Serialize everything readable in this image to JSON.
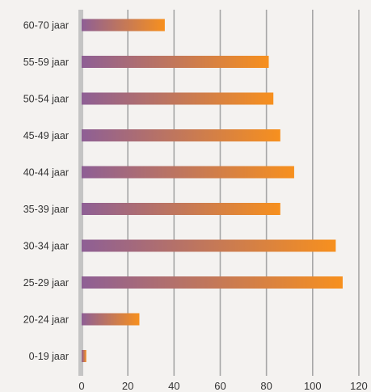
{
  "chart_data": {
    "type": "bar",
    "orientation": "horizontal",
    "categories": [
      "60-70 jaar",
      "55-59 jaar",
      "50-54 jaar",
      "45-49 jaar",
      "40-44 jaar",
      "35-39 jaar",
      "30-34 jaar",
      "25-29 jaar",
      "20-24 jaar",
      "0-19 jaar"
    ],
    "values": [
      36,
      81,
      83,
      86,
      92,
      86,
      110,
      113,
      25,
      2
    ],
    "xlim": [
      0,
      120
    ],
    "xticks": [
      "0",
      "20",
      "40",
      "60",
      "80",
      "100",
      "120"
    ],
    "grid": "vertical",
    "title": "",
    "xlabel": "",
    "ylabel": "",
    "colors": {
      "bar_start": "#8e5f95",
      "bar_end": "#f7901e",
      "gridline": "#a7a7a7",
      "axis": "#c4c4c4",
      "background": "#f4f2f0"
    }
  }
}
